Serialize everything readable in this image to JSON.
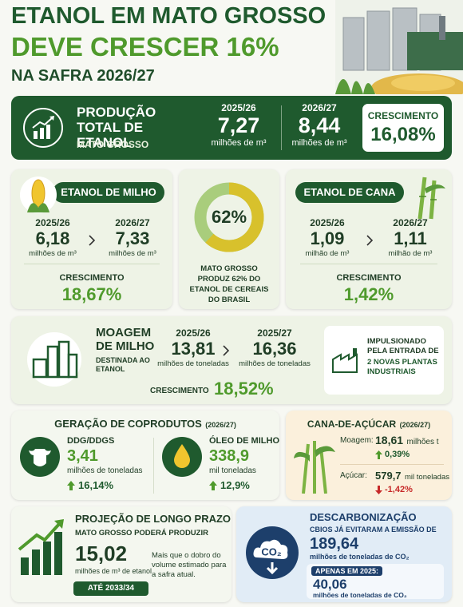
{
  "header": {
    "title_line1": "ETANOL EM MATO GROSSO",
    "title_line2": "DEVE CRESCER 16%",
    "title_line3": "NA SAFRA 2026/27"
  },
  "total": {
    "title": "PRODUÇÃO TOTAL DE ETANOL",
    "subtitle": "MATO GROSSO",
    "periods": [
      {
        "label": "2025/26",
        "value": "7,27",
        "unit": "milhões de m³"
      },
      {
        "label": "2026/27",
        "value": "8,44",
        "unit": "milhões de m³"
      }
    ],
    "growth_label": "CRESCIMENTO",
    "growth": "16,08%"
  },
  "milho": {
    "title": "ETANOL DE MILHO",
    "periods": [
      {
        "label": "2025/26",
        "value": "6,18",
        "unit": "milhões de m³"
      },
      {
        "label": "2026/27",
        "value": "7,33",
        "unit": "milhões de m³"
      }
    ],
    "growth_label": "CRESCIMENTO",
    "growth": "18,67%"
  },
  "donut": {
    "value": 62,
    "label": "62%",
    "caption": "MATO GROSSO PRODUZ 62% DO ETANOL DE CEREAIS DO BRASIL"
  },
  "cana": {
    "title": "ETANOL DE CANA",
    "periods": [
      {
        "label": "2025/26",
        "value": "1,09",
        "unit": "milhão de m³"
      },
      {
        "label": "2026/27",
        "value": "1,11",
        "unit": "milhão de m³"
      }
    ],
    "growth_label": "CRESCIMENTO",
    "growth": "1,42%"
  },
  "moagem": {
    "title": "MOAGEM DE MILHO",
    "subtitle": "DESTINADA AO ETANOL",
    "periods": [
      {
        "label": "2025/26",
        "value": "13,81",
        "unit": "milhões de toneladas"
      },
      {
        "label": "2025/27",
        "value": "16,36",
        "unit": "milhões de toneladas"
      }
    ],
    "growth_label": "CRESCIMENTO",
    "growth": "18,52%",
    "note": "IMPULSIONADO PELA ENTRADA DE",
    "note_highlight": "2 NOVAS PLANTAS INDUSTRIAIS"
  },
  "coprodutos": {
    "title": "GERAÇÃO DE COPRODUTOS",
    "period": "(2026/27)",
    "items": [
      {
        "name": "DDG/DDGS",
        "value": "3,41",
        "unit": "milhões de toneladas",
        "change": "16,14%"
      },
      {
        "name": "ÓLEO DE MILHO",
        "value": "338,9",
        "unit": "mil toneladas",
        "change": "12,9%"
      }
    ]
  },
  "cana_acucar": {
    "title": "CANA-DE-AÇÚCAR",
    "period": "(2026/27)",
    "items": [
      {
        "name": "Moagem:",
        "value": "18,61",
        "unit": "milhões t",
        "change": "0,39%"
      },
      {
        "name": "Açúcar:",
        "value": "579,7",
        "unit": "mil toneladas",
        "change": "-1,42%"
      }
    ]
  },
  "projecao": {
    "title": "PROJEÇÃO DE LONGO PRAZO",
    "subtitle": "MATO GROSSO PODERÁ PRODUZIR",
    "value": "15,02",
    "unit": "milhões de m³ de etanol",
    "note": "Mais que o dobro do volume estimado para a safra atual.",
    "horizon": "ATÉ 2033/34"
  },
  "descarbonizacao": {
    "title": "DESCARBONIZAÇÃO",
    "icon_label": "CO₂",
    "subtitle": "CBIOS JÁ EVITARAM A EMISSÃO DE",
    "value": "189,64",
    "unit": "milhões de toneladas de CO₂",
    "period_label": "APENAS EM 2025:",
    "period_value": "40,06",
    "period_unit": "milhões de toneladas de CO₂"
  }
}
